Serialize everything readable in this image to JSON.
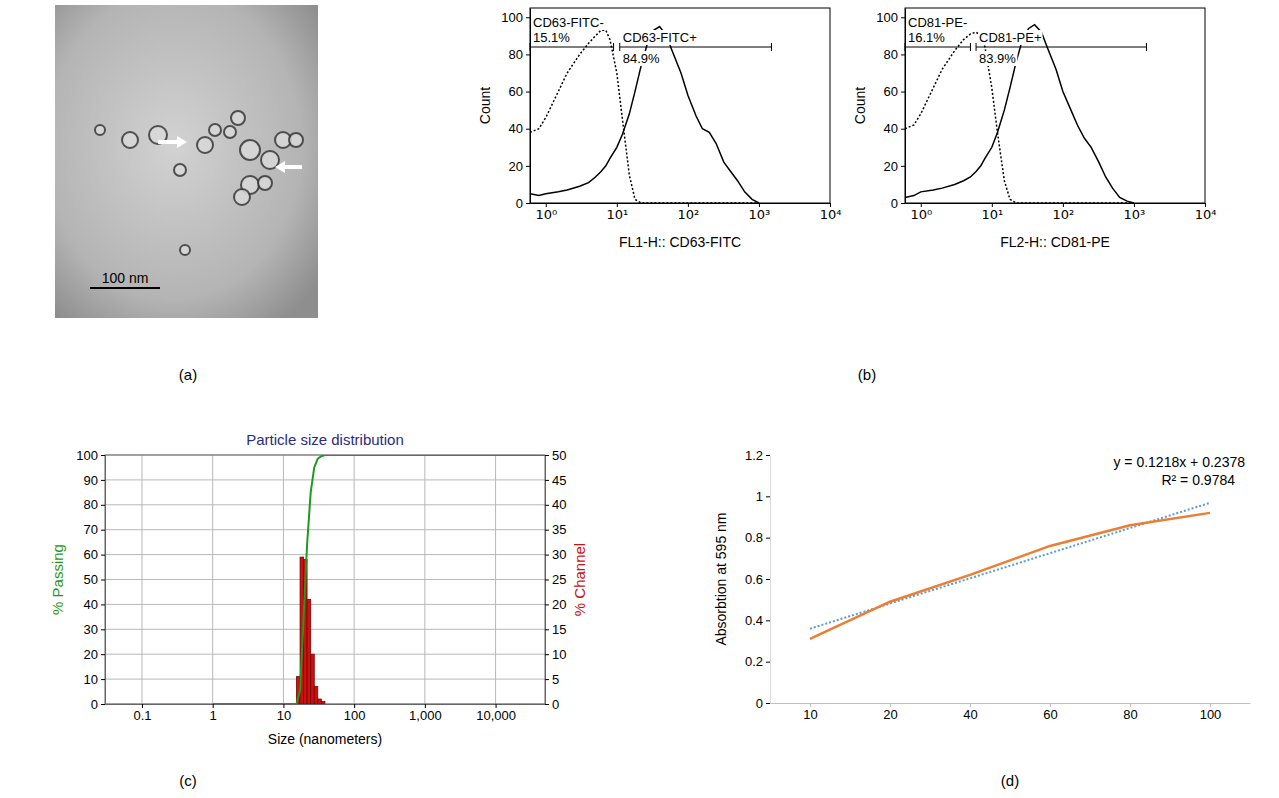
{
  "chart_data": [
    {
      "type": "image",
      "panel_label": "(a)",
      "scale_bar_label": "100 nm"
    },
    {
      "type": "line",
      "panel_label": "(b)",
      "log": "x",
      "xlabel": "FL1-H:: CD63-FITC",
      "ylabel": "Count",
      "xlim": [
        0.6,
        10000
      ],
      "xticks": [
        {
          "value": 1,
          "label": "10⁰"
        },
        {
          "value": 10,
          "label": "10¹"
        },
        {
          "value": 100,
          "label": "10²"
        },
        {
          "value": 1000,
          "label": "10³"
        },
        {
          "value": 10000,
          "label": "10⁴"
        }
      ],
      "ylim": [
        0,
        105
      ],
      "yticks": [
        0,
        20,
        40,
        60,
        80,
        100
      ],
      "x": [
        0.6,
        0.8,
        1,
        1.5,
        2,
        3,
        4,
        5,
        6,
        7,
        8,
        10,
        12,
        15,
        18,
        22,
        27,
        33,
        40,
        50,
        60,
        80,
        100,
        130,
        160,
        200,
        250,
        320,
        400,
        500,
        630,
        800,
        1000
      ],
      "series": [
        {
          "color": "#000000",
          "line_style": "dotted",
          "values": [
            38,
            40,
            46,
            60,
            70,
            80,
            86,
            90,
            93,
            93,
            88,
            70,
            45,
            15,
            2,
            0,
            0,
            0,
            0,
            0,
            0,
            0,
            0,
            0,
            0,
            0,
            0,
            0,
            0,
            0,
            0,
            0,
            0
          ]
        },
        {
          "color": "#000000",
          "line_style": "solid",
          "values": [
            5,
            4,
            5,
            6,
            7,
            9,
            11,
            14,
            17,
            20,
            24,
            30,
            37,
            48,
            60,
            74,
            86,
            93,
            95,
            90,
            82,
            70,
            58,
            47,
            40,
            38,
            32,
            22,
            17,
            12,
            6,
            2,
            0
          ]
        }
      ],
      "annotations": [
        {
          "text": "CD63-FITC-",
          "percent": "15.1%",
          "x_range": [
            0.6,
            9
          ],
          "y": 84
        },
        {
          "text": "CD63-FITC+",
          "percent": "84.9%",
          "x_range": [
            11,
            1500
          ],
          "y": 84
        }
      ]
    },
    {
      "type": "line",
      "log": "x",
      "xlabel": "FL2-H:: CD81-PE",
      "ylabel": "Count",
      "xlim": [
        0.6,
        10000
      ],
      "xticks": [
        {
          "value": 1,
          "label": "10⁰"
        },
        {
          "value": 10,
          "label": "10¹"
        },
        {
          "value": 100,
          "label": "10²"
        },
        {
          "value": 1000,
          "label": "10³"
        },
        {
          "value": 10000,
          "label": "10⁴"
        }
      ],
      "ylim": [
        0,
        105
      ],
      "yticks": [
        0,
        20,
        40,
        60,
        80,
        100
      ],
      "x": [
        0.6,
        0.8,
        1,
        1.5,
        2,
        3,
        4,
        5,
        6,
        7,
        8,
        10,
        12,
        15,
        18,
        22,
        27,
        33,
        40,
        50,
        60,
        80,
        100,
        130,
        160,
        200,
        250,
        320,
        400,
        500,
        630,
        800,
        1000
      ],
      "series": [
        {
          "color": "#000000",
          "line_style": "dotted",
          "values": [
            40,
            42,
            48,
            62,
            72,
            82,
            88,
            91,
            92,
            90,
            84,
            62,
            38,
            12,
            2,
            0,
            0,
            0,
            0,
            0,
            0,
            0,
            0,
            0,
            0,
            0,
            0,
            0,
            0,
            0,
            0,
            0,
            0
          ]
        },
        {
          "color": "#000000",
          "line_style": "solid",
          "values": [
            3,
            4,
            6,
            7,
            8,
            10,
            12,
            14,
            17,
            20,
            24,
            30,
            38,
            50,
            62,
            76,
            88,
            94,
            96,
            92,
            84,
            72,
            60,
            50,
            42,
            35,
            30,
            22,
            14,
            8,
            3,
            1,
            0
          ]
        }
      ],
      "annotations": [
        {
          "text": "CD81-PE-",
          "percent": "16.1%",
          "x_range": [
            0.6,
            5
          ],
          "y": 84
        },
        {
          "text": "CD81-PE+",
          "percent": "83.9%",
          "x_range": [
            6,
            1500
          ],
          "y": 84
        }
      ]
    },
    {
      "type": "histogram",
      "panel_label": "(c)",
      "title": "Particle size distribution",
      "log": "x",
      "grid": true,
      "xlabel": "Size (nanometers)",
      "ylabel": "% Passing",
      "y2label": "% Channel",
      "xlim": [
        0.03,
        50000
      ],
      "xticks": [
        0.1,
        1,
        10,
        100,
        {
          "value": 1000,
          "label": "1,000"
        },
        {
          "value": 10000,
          "label": "10,000"
        }
      ],
      "ylim": [
        0,
        100
      ],
      "yticks": [
        0,
        10,
        20,
        30,
        40,
        50,
        60,
        70,
        80,
        90,
        100
      ],
      "y2lim": [
        0,
        50
      ],
      "y2ticks": [
        0,
        5,
        10,
        15,
        20,
        25,
        30,
        35,
        40,
        45,
        50
      ],
      "series": [
        {
          "type": "bar",
          "axis": "y2",
          "color": "#cc1111",
          "bins": [
            15.3,
            17.2,
            19.3,
            21.6,
            24.3,
            27.3,
            30.6,
            34.4,
            38.6
          ],
          "values": [
            5.5,
            29.5,
            29,
            21,
            10,
            3.5,
            1,
            0.5
          ]
        },
        {
          "type": "line",
          "color": "#1f9a1f",
          "x": [
            1,
            10,
            15.3,
            17.2,
            19.3,
            21.6,
            24.3,
            27.3,
            30.6,
            34.4,
            38.6,
            50,
            100,
            1000,
            10000,
            50000
          ],
          "values": [
            0,
            0,
            0,
            5.5,
            35,
            64,
            85,
            95,
            98.5,
            99.5,
            100,
            100,
            100,
            100,
            100,
            100
          ]
        }
      ]
    },
    {
      "type": "line",
      "panel_label": "(d)",
      "ylabel": "Absorbtion at 595 nm",
      "categories": [
        "10",
        "20",
        "40",
        "60",
        "80",
        "100"
      ],
      "values": [
        0.31,
        0.49,
        0.62,
        0.76,
        0.86,
        0.92
      ],
      "color": "#ed7d31",
      "ylim": [
        0,
        1.2
      ],
      "yticks": [
        0,
        0.2,
        0.4,
        0.6,
        0.8,
        1,
        1.2
      ],
      "trendline": {
        "slope": 0.1218,
        "intercept": 0.2378,
        "equation": "y = 0.1218x + 0.2378",
        "r2_label": "R² = 0.9784",
        "color": "#5b9bd5",
        "line_style": "dotted"
      }
    }
  ]
}
